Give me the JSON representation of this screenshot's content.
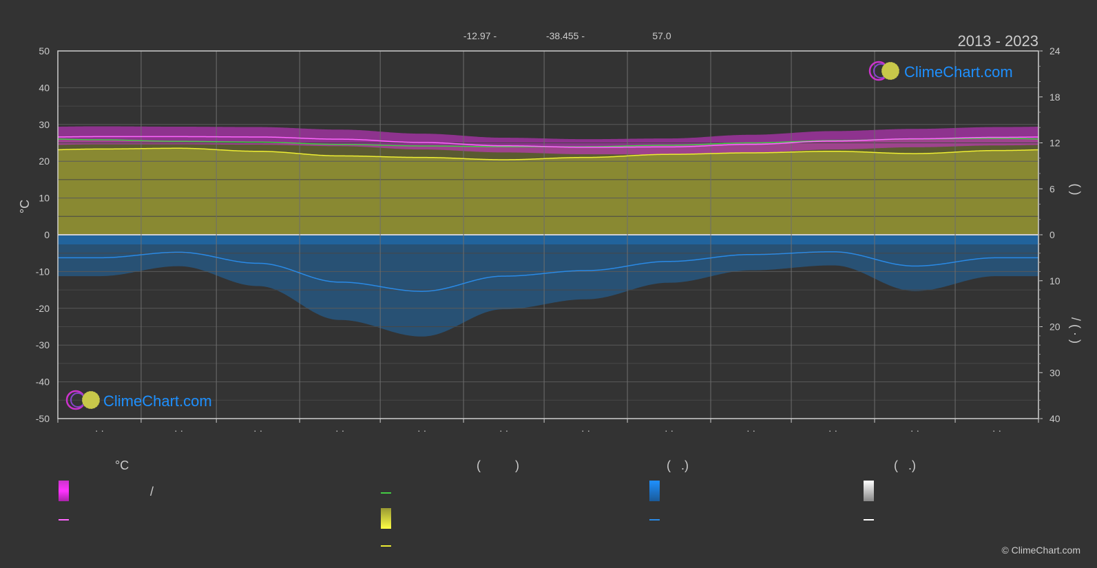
{
  "header": {
    "latitude": "-12.97",
    "longitude": "-38.455",
    "elevation": "57.0",
    "period": "2013 - 2023"
  },
  "axes": {
    "left_label": "°C",
    "right_top_label": "(       )",
    "right_bottom_label": "/     (  ·  )"
  },
  "logo": {
    "text": "ClimeChart.com"
  },
  "legend": {
    "col1_head": "°C",
    "col2_head": "(          )",
    "col3_head": "(   .)",
    "col4_head": "(   .)",
    "col1_range_sep": "/"
  },
  "copyright": "© ClimeChart.com",
  "colors": {
    "background": "#333333",
    "temp_band": "#cc33cc",
    "temp_mean": "#ff66ff",
    "daylight": "#44cc44",
    "sunshine_band": "#999933",
    "sunshine_mean": "#eeee33",
    "rain": "#1a75c4",
    "rain_mean": "#2a8ae6",
    "grid": "#5a5a5a"
  },
  "chart_data": {
    "type": "area",
    "x_months": [
      "· ·",
      "· ·",
      "· ·",
      "· ·",
      "· ·",
      "· ·",
      "· ·",
      "· ·",
      "· ·",
      "· ·",
      "· ·",
      "· ·"
    ],
    "month_days": [
      31,
      28,
      31,
      30,
      31,
      30,
      31,
      31,
      30,
      31,
      30,
      31
    ],
    "left_axis": {
      "label": "°C",
      "ylim": [
        -50,
        50
      ],
      "ticks": [
        50,
        40,
        30,
        20,
        10,
        0,
        -10,
        -20,
        -30,
        -40,
        -50
      ]
    },
    "right_axis_top": {
      "ylim": [
        0,
        24
      ],
      "ticks": [
        24,
        18,
        12,
        6,
        0
      ]
    },
    "right_axis_bottom": {
      "ylim": [
        0,
        40
      ],
      "ticks": [
        0,
        10,
        20,
        30,
        40
      ]
    },
    "series": [
      {
        "key": "temp_max",
        "values": [
          29.5,
          29.4,
          29.3,
          28.6,
          27.5,
          26.4,
          26.0,
          26.2,
          27.2,
          28.2,
          28.8,
          29.3
        ]
      },
      {
        "key": "temp_min",
        "values": [
          24.6,
          24.6,
          24.5,
          24.1,
          23.2,
          22.4,
          21.9,
          21.8,
          22.3,
          23.2,
          23.8,
          24.3
        ]
      },
      {
        "key": "temp_mean",
        "values": [
          26.7,
          26.7,
          26.6,
          26.0,
          25.1,
          24.2,
          23.8,
          23.9,
          24.6,
          25.5,
          26.1,
          26.5
        ]
      },
      {
        "key": "daylight",
        "values": [
          12.4,
          12.2,
          12.1,
          11.8,
          11.6,
          11.5,
          11.5,
          11.7,
          12.0,
          12.3,
          12.5,
          12.6
        ]
      },
      {
        "key": "sunshine",
        "values": [
          11.2,
          11.3,
          10.9,
          10.3,
          10.1,
          9.8,
          10.1,
          10.5,
          10.7,
          10.9,
          10.6,
          11.0
        ]
      },
      {
        "key": "rain_mean",
        "values": [
          5.0,
          3.8,
          6.2,
          10.3,
          12.3,
          9.0,
          7.8,
          5.8,
          4.3,
          3.7,
          6.8,
          5.0
        ]
      }
    ]
  }
}
